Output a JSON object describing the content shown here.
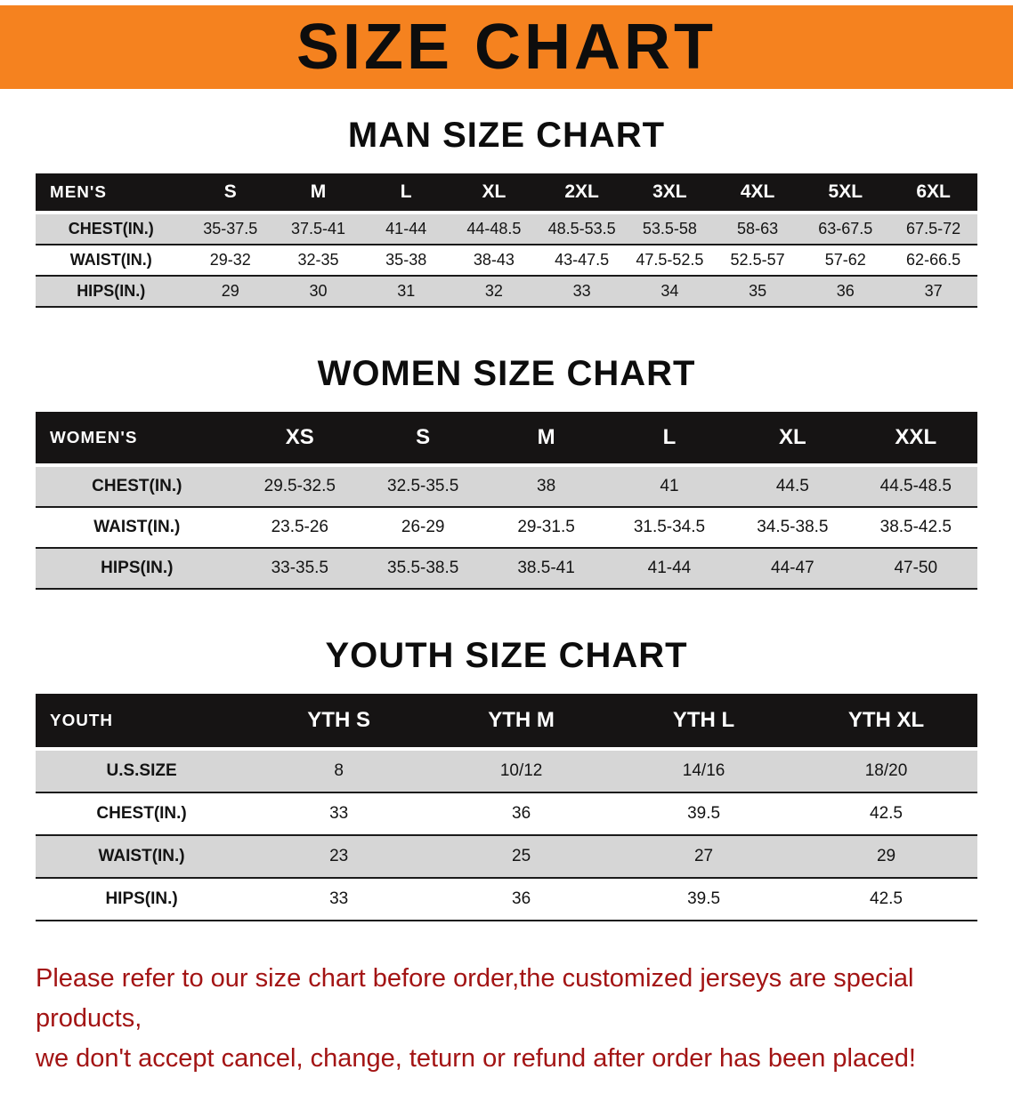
{
  "banner": {
    "title": "SIZE CHART",
    "bg_color": "#f5821f"
  },
  "sections": [
    {
      "id": "men",
      "heading": "MAN SIZE CHART",
      "table": {
        "header": [
          "MEN'S",
          "S",
          "M",
          "L",
          "XL",
          "2XL",
          "3XL",
          "4XL",
          "5XL",
          "6XL"
        ],
        "rows": [
          [
            "CHEST(IN.)",
            "35-37.5",
            "37.5-41",
            "41-44",
            "44-48.5",
            "48.5-53.5",
            "53.5-58",
            "58-63",
            "63-67.5",
            "67.5-72"
          ],
          [
            "WAIST(IN.)",
            "29-32",
            "32-35",
            "35-38",
            "38-43",
            "43-47.5",
            "47.5-52.5",
            "52.5-57",
            "57-62",
            "62-66.5"
          ],
          [
            "HIPS(IN.)",
            "29",
            "30",
            "31",
            "32",
            "33",
            "34",
            "35",
            "36",
            "37"
          ]
        ]
      }
    },
    {
      "id": "women",
      "heading": "WOMEN SIZE CHART",
      "table": {
        "header": [
          "WOMEN'S",
          "XS",
          "S",
          "M",
          "L",
          "XL",
          "XXL"
        ],
        "rows": [
          [
            "CHEST(IN.)",
            "29.5-32.5",
            "32.5-35.5",
            "38",
            "41",
            "44.5",
            "44.5-48.5"
          ],
          [
            "WAIST(IN.)",
            "23.5-26",
            "26-29",
            "29-31.5",
            "31.5-34.5",
            "34.5-38.5",
            "38.5-42.5"
          ],
          [
            "HIPS(IN.)",
            "33-35.5",
            "35.5-38.5",
            "38.5-41",
            "41-44",
            "44-47",
            "47-50"
          ]
        ]
      }
    },
    {
      "id": "youth",
      "heading": "YOUTH SIZE CHART",
      "table": {
        "header": [
          "YOUTH",
          "YTH S",
          "YTH M",
          "YTH L",
          "YTH XL"
        ],
        "rows": [
          [
            "U.S.SIZE",
            "8",
            "10/12",
            "14/16",
            "18/20"
          ],
          [
            "CHEST(IN.)",
            "33",
            "36",
            "39.5",
            "42.5"
          ],
          [
            "WAIST(IN.)",
            "23",
            "25",
            "27",
            "29"
          ],
          [
            "HIPS(IN.)",
            "33",
            "36",
            "39.5",
            "42.5"
          ]
        ]
      }
    }
  ],
  "footer": {
    "lines": [
      "Please refer to our size chart before order,the customized jerseys are special products,",
      "we don't accept cancel, change, teturn or refund after order has been placed!"
    ],
    "color": "#a31414"
  }
}
